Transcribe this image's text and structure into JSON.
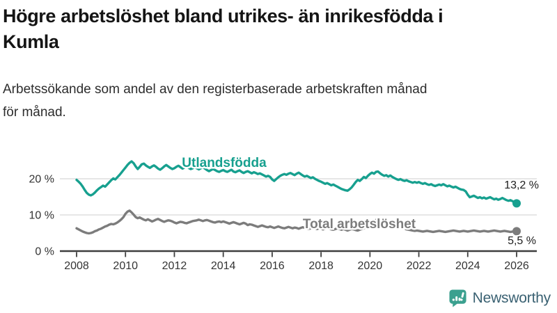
{
  "header": {
    "title_lines": [
      "Högre arbetslöshet bland utrikes- än inrikesfödda i",
      "Kumla"
    ],
    "subtitle_lines": [
      "Arbetssökande som andel av den registerbaserade arbetskraften månad",
      "för månad."
    ]
  },
  "footer": {
    "brand": "Newsworthy"
  },
  "colors": {
    "accent_teal": "#17A08F",
    "series_gray": "#7c7c7c",
    "gridline": "#d8d8d8",
    "axis": "#3e3e3e",
    "axis_text": "#333333",
    "logo_icon": "#3BA08F",
    "logo_text": "#3a6172"
  },
  "chart_data": {
    "type": "line",
    "title": "Högre arbetslöshet bland utrikes- än inrikesfödda i Kumla",
    "subtitle": "Arbetssökande som andel av den registerbaserade arbetskraften månad för månad.",
    "x_start_year": 2008,
    "x_step_months": 1,
    "x_axis": {
      "ticks": [
        2008,
        2010,
        2012,
        2014,
        2016,
        2018,
        2020,
        2022,
        2024,
        2026
      ]
    },
    "y_axis": {
      "ticks": [
        0,
        10,
        20
      ],
      "tick_labels": [
        "0 %",
        "10 %",
        "20 %"
      ],
      "ylim": [
        0,
        26
      ]
    },
    "grid": "horizontal",
    "legend": "inline-labels",
    "series": [
      {
        "name": "Utlandsfödda",
        "color": "#17A08F",
        "end_label": "13,2 %",
        "end_value": 13.2,
        "values": [
          19.7,
          19.2,
          18.6,
          17.8,
          16.9,
          16.1,
          15.6,
          15.4,
          15.7,
          16.2,
          16.8,
          17.3,
          17.7,
          18.1,
          17.8,
          18.4,
          19.0,
          19.6,
          20.1,
          19.8,
          20.4,
          21.0,
          21.7,
          22.4,
          23.1,
          23.8,
          24.4,
          24.8,
          24.3,
          23.4,
          22.7,
          23.3,
          24.0,
          24.2,
          23.7,
          23.3,
          23.0,
          23.4,
          23.7,
          23.3,
          22.8,
          22.5,
          22.9,
          23.4,
          23.8,
          23.4,
          23.0,
          22.7,
          22.9,
          23.3,
          23.6,
          23.2,
          22.8,
          23.1,
          23.4,
          23.0,
          22.7,
          22.9,
          23.2,
          22.9,
          22.6,
          22.9,
          23.2,
          22.8,
          22.4,
          22.1,
          22.4,
          22.7,
          22.4,
          22.1,
          21.9,
          22.2,
          22.4,
          22.1,
          21.9,
          22.2,
          22.5,
          22.0,
          21.8,
          22.1,
          22.3,
          21.9,
          21.6,
          21.9,
          22.1,
          21.8,
          21.5,
          21.8,
          21.6,
          21.3,
          21.5,
          21.2,
          20.9,
          20.6,
          20.8,
          20.5,
          19.8,
          19.4,
          19.9,
          20.4,
          20.8,
          21.1,
          21.3,
          21.1,
          21.4,
          21.6,
          21.3,
          21.0,
          21.4,
          21.7,
          21.3,
          20.9,
          20.6,
          20.8,
          20.5,
          20.2,
          20.4,
          20.0,
          19.7,
          19.4,
          19.2,
          18.9,
          18.6,
          18.8,
          18.5,
          18.2,
          18.4,
          18.1,
          17.8,
          17.5,
          17.2,
          17.0,
          16.8,
          16.7,
          17.1,
          17.6,
          18.3,
          19.1,
          19.7,
          19.4,
          19.9,
          20.5,
          20.2,
          20.8,
          21.3,
          21.7,
          21.4,
          21.9,
          22.0,
          21.5,
          21.1,
          20.8,
          21.0,
          20.6,
          20.9,
          20.5,
          20.2,
          19.9,
          19.7,
          19.9,
          19.6,
          19.4,
          19.6,
          19.3,
          19.1,
          18.9,
          19.1,
          18.9,
          19.1,
          18.8,
          18.6,
          18.8,
          18.5,
          18.3,
          18.5,
          18.2,
          18.0,
          18.2,
          18.4,
          18.2,
          18.5,
          18.2,
          17.9,
          18.1,
          17.8,
          17.6,
          17.8,
          17.5,
          17.2,
          17.0,
          16.9,
          16.5,
          15.6,
          14.9,
          15.1,
          15.3,
          15.0,
          14.7,
          14.9,
          14.6,
          14.8,
          14.5,
          14.7,
          14.9,
          14.6,
          14.3,
          14.5,
          14.2,
          14.4,
          14.7,
          14.4,
          14.1,
          13.9,
          14.1,
          13.8,
          13.5,
          13.2
        ]
      },
      {
        "name": "Total arbetslöshet",
        "color": "#7c7c7c",
        "end_label": "5,5 %",
        "end_value": 5.5,
        "values": [
          6.3,
          6.0,
          5.7,
          5.4,
          5.2,
          5.0,
          4.9,
          5.0,
          5.2,
          5.5,
          5.7,
          6.0,
          6.2,
          6.5,
          6.8,
          7.0,
          7.3,
          7.5,
          7.4,
          7.6,
          7.9,
          8.3,
          8.8,
          9.4,
          10.3,
          10.9,
          11.2,
          10.7,
          10.1,
          9.4,
          9.1,
          9.3,
          9.0,
          8.7,
          8.5,
          8.8,
          8.5,
          8.2,
          8.4,
          8.7,
          8.9,
          8.6,
          8.3,
          8.1,
          8.3,
          8.5,
          8.4,
          8.2,
          7.9,
          7.7,
          7.9,
          8.1,
          8.0,
          7.8,
          7.7,
          7.9,
          8.1,
          8.3,
          8.4,
          8.5,
          8.7,
          8.5,
          8.3,
          8.5,
          8.6,
          8.4,
          8.2,
          8.0,
          7.9,
          8.1,
          8.2,
          8.0,
          8.2,
          8.0,
          7.8,
          7.6,
          7.8,
          8.0,
          7.8,
          7.6,
          7.4,
          7.6,
          7.8,
          7.6,
          7.2,
          7.4,
          7.3,
          7.1,
          6.9,
          6.7,
          6.9,
          7.1,
          6.9,
          6.7,
          6.6,
          6.8,
          6.6,
          6.4,
          6.6,
          6.8,
          6.6,
          6.4,
          6.3,
          6.5,
          6.7,
          6.5,
          6.3,
          6.5,
          6.4,
          6.2,
          6.4,
          6.6,
          6.4,
          6.2,
          6.1,
          6.3,
          6.5,
          6.3,
          6.1,
          6.3,
          6.2,
          6.0,
          6.2,
          6.4,
          6.2,
          6.0,
          5.9,
          6.1,
          6.3,
          6.1,
          5.9,
          6.1,
          5.9,
          5.7,
          5.9,
          6.1,
          6.0,
          5.8,
          5.7,
          5.9,
          6.1,
          6.3,
          6.6,
          6.9,
          7.2,
          7.6,
          8.1,
          8.6,
          8.9,
          8.7,
          8.5,
          8.3,
          8.0,
          7.8,
          7.6,
          7.4,
          7.2,
          7.0,
          6.8,
          6.6,
          6.4,
          6.2,
          6.0,
          5.9,
          5.8,
          5.7,
          5.6,
          5.7,
          5.6,
          5.5,
          5.4,
          5.5,
          5.6,
          5.5,
          5.4,
          5.3,
          5.4,
          5.5,
          5.6,
          5.5,
          5.4,
          5.3,
          5.4,
          5.5,
          5.6,
          5.7,
          5.6,
          5.5,
          5.4,
          5.5,
          5.6,
          5.5,
          5.4,
          5.5,
          5.6,
          5.7,
          5.6,
          5.5,
          5.4,
          5.5,
          5.6,
          5.5,
          5.4,
          5.5,
          5.6,
          5.7,
          5.6,
          5.5,
          5.4,
          5.5,
          5.6,
          5.5,
          5.4,
          5.3,
          5.4,
          5.5,
          5.5
        ]
      }
    ]
  }
}
